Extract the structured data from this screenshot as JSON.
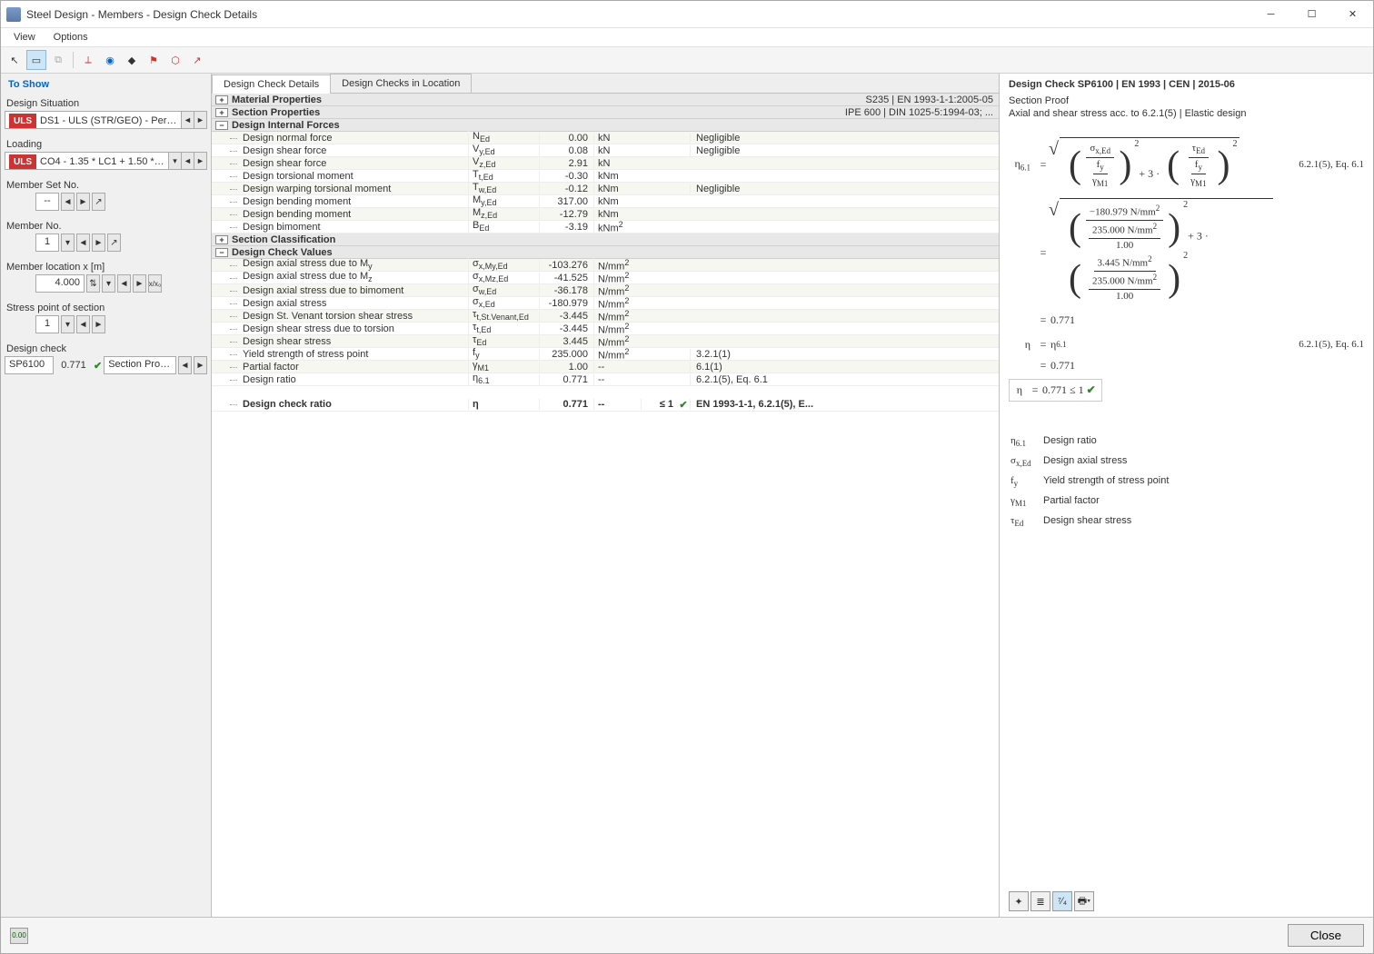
{
  "window": {
    "title": "Steel Design - Members - Design Check Details"
  },
  "menu": {
    "view": "View",
    "options": "Options"
  },
  "left": {
    "to_show": "To Show",
    "design_situation_label": "Design Situation",
    "design_situation_badge": "ULS",
    "design_situation_text": "DS1 - ULS (STR/GEO) - Permane...",
    "loading_label": "Loading",
    "loading_badge": "ULS",
    "loading_text": "CO4 - 1.35 * LC1 + 1.50 * LC2",
    "member_set_label": "Member Set No.",
    "member_set_val": "--",
    "member_no_label": "Member No.",
    "member_no_val": "1",
    "member_loc_label": "Member location x [m]",
    "member_loc_val": "4.000",
    "stress_point_label": "Stress point of section",
    "stress_point_val": "1",
    "design_check_label": "Design check",
    "design_check_code": "SP6100",
    "design_check_ratio": "0.771",
    "design_check_desc": "Section Proof | Ax..."
  },
  "tabs": {
    "a": "Design Check Details",
    "b": "Design Checks in Location"
  },
  "groups": {
    "mat": {
      "title": "Material Properties",
      "right": "S235 | EN 1993-1-1:2005-05"
    },
    "sec": {
      "title": "Section Properties",
      "right": "IPE 600 | DIN 1025-5:1994-03; ..."
    },
    "dif": {
      "title": "Design Internal Forces"
    },
    "scl": {
      "title": "Section Classification"
    },
    "dcv": {
      "title": "Design Check Values"
    }
  },
  "dif": [
    {
      "name": "Design normal force",
      "sym": "N<sub>Ed</sub>",
      "val": "0.00",
      "unit": "kN",
      "ref": "Negligible"
    },
    {
      "name": "Design shear force",
      "sym": "V<sub>y,Ed</sub>",
      "val": "0.08",
      "unit": "kN",
      "ref": "Negligible"
    },
    {
      "name": "Design shear force",
      "sym": "V<sub>z,Ed</sub>",
      "val": "2.91",
      "unit": "kN",
      "ref": ""
    },
    {
      "name": "Design torsional moment",
      "sym": "T<sub>t,Ed</sub>",
      "val": "-0.30",
      "unit": "kNm",
      "ref": ""
    },
    {
      "name": "Design warping torsional moment",
      "sym": "T<sub>w,Ed</sub>",
      "val": "-0.12",
      "unit": "kNm",
      "ref": "Negligible"
    },
    {
      "name": "Design bending moment",
      "sym": "M<sub>y,Ed</sub>",
      "val": "317.00",
      "unit": "kNm",
      "ref": ""
    },
    {
      "name": "Design bending moment",
      "sym": "M<sub>z,Ed</sub>",
      "val": "-12.79",
      "unit": "kNm",
      "ref": ""
    },
    {
      "name": "Design bimoment",
      "sym": "B<sub>Ed</sub>",
      "val": "-3.19",
      "unit": "kNm<sup>2</sup>",
      "ref": ""
    }
  ],
  "dcv": [
    {
      "name": "Design axial stress due to M<sub>y</sub>",
      "sym": "σ<sub>x,My,Ed</sub>",
      "val": "-103.276",
      "unit": "N/mm<sup>2</sup>",
      "ref": ""
    },
    {
      "name": "Design axial stress due to M<sub>z</sub>",
      "sym": "σ<sub>x,Mz,Ed</sub>",
      "val": "-41.525",
      "unit": "N/mm<sup>2</sup>",
      "ref": ""
    },
    {
      "name": "Design axial stress due to bimoment",
      "sym": "σ<sub>w,Ed</sub>",
      "val": "-36.178",
      "unit": "N/mm<sup>2</sup>",
      "ref": ""
    },
    {
      "name": "Design axial stress",
      "sym": "σ<sub>x,Ed</sub>",
      "val": "-180.979",
      "unit": "N/mm<sup>2</sup>",
      "ref": ""
    },
    {
      "name": "Design St. Venant torsion shear stress",
      "sym": "τ<sub>t,St.Venant,Ed</sub>",
      "val": "-3.445",
      "unit": "N/mm<sup>2</sup>",
      "ref": ""
    },
    {
      "name": "Design shear stress due to torsion",
      "sym": "τ<sub>t,Ed</sub>",
      "val": "-3.445",
      "unit": "N/mm<sup>2</sup>",
      "ref": ""
    },
    {
      "name": "Design shear stress",
      "sym": "τ<sub>Ed</sub>",
      "val": "3.445",
      "unit": "N/mm<sup>2</sup>",
      "ref": ""
    },
    {
      "name": "Yield strength of stress point",
      "sym": "f<sub>y</sub>",
      "val": "235.000",
      "unit": "N/mm<sup>2</sup>",
      "ref": "3.2.1(1)"
    },
    {
      "name": "Partial factor",
      "sym": "γ<sub>M1</sub>",
      "val": "1.00",
      "unit": "--",
      "ref": "6.1(1)"
    },
    {
      "name": "Design ratio",
      "sym": "η<sub>6.1</sub>",
      "val": "0.771",
      "unit": "--",
      "ref": "6.2.1(5), Eq. 6.1"
    }
  ],
  "final": {
    "name": "Design check ratio",
    "sym": "η",
    "val": "0.771",
    "unit": "--",
    "lim": "≤ 1",
    "ref": "EN 1993-1-1, 6.2.1(5), E..."
  },
  "right": {
    "title": "Design Check SP6100 | EN 1993 | CEN | 2015-06",
    "sub": "Section Proof",
    "sub2": "Axial and shear stress acc. to 6.2.1(5) | Elastic design",
    "ref1": "6.2.1(5), Eq. 6.1",
    "ref2": "6.2.1(5), Eq. 6.1",
    "eta61": "η<sub>6.1</sub>",
    "eta": "η",
    "val_sigma": "−180.979 N/mm<sup>2</sup>",
    "val_fy": "235.000 N/mm<sup>2</sup>",
    "val_gm": "1.00",
    "val_tau": "3.445 N/mm<sup>2</sup>",
    "res": "0.771",
    "chk": "0.771  ≤ 1",
    "symbols": [
      {
        "s": "η<sub>6.1</sub>",
        "d": "Design ratio"
      },
      {
        "s": "σ<sub>x,Ed</sub>",
        "d": "Design axial stress"
      },
      {
        "s": "f<sub>y</sub>",
        "d": "Yield strength of stress point"
      },
      {
        "s": "γ<sub>M1</sub>",
        "d": "Partial factor"
      },
      {
        "s": "τ<sub>Ed</sub>",
        "d": "Design shear stress"
      }
    ]
  },
  "footer": {
    "close": "Close"
  }
}
